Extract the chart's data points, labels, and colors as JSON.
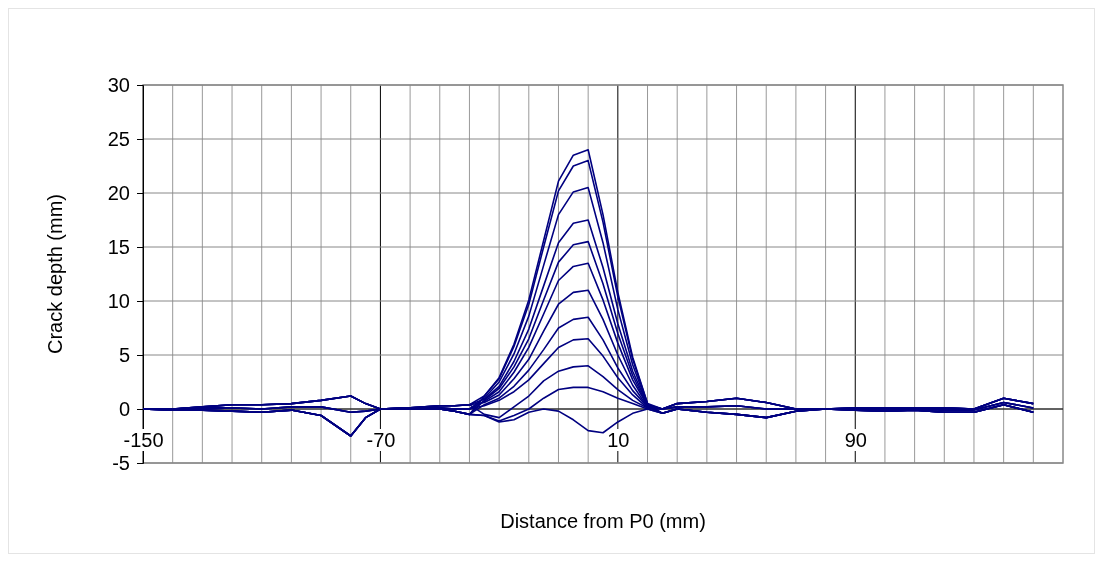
{
  "chart_data": {
    "type": "line",
    "xlabel": "Distance from P0 (mm)",
    "ylabel": "Crack depth (mm)",
    "xlim": [
      -150,
      160
    ],
    "ylim": [
      -5,
      30
    ],
    "xticks": [
      {
        "value": -150,
        "label": "-150"
      },
      {
        "value": -140,
        "label": null
      },
      {
        "value": -130,
        "label": null
      },
      {
        "value": -120,
        "label": null
      },
      {
        "value": -110,
        "label": null
      },
      {
        "value": -100,
        "label": null
      },
      {
        "value": -90,
        "label": null
      },
      {
        "value": -80,
        "label": null
      },
      {
        "value": -70,
        "label": "-70"
      },
      {
        "value": -60,
        "label": null
      },
      {
        "value": -50,
        "label": null
      },
      {
        "value": -40,
        "label": null
      },
      {
        "value": -30,
        "label": null
      },
      {
        "value": -20,
        "label": null
      },
      {
        "value": -10,
        "label": null
      },
      {
        "value": 0,
        "label": null
      },
      {
        "value": 10,
        "label": "10"
      },
      {
        "value": 20,
        "label": null
      },
      {
        "value": 30,
        "label": null
      },
      {
        "value": 40,
        "label": null
      },
      {
        "value": 50,
        "label": null
      },
      {
        "value": 60,
        "label": null
      },
      {
        "value": 70,
        "label": null
      },
      {
        "value": 80,
        "label": null
      },
      {
        "value": 90,
        "label": "90"
      },
      {
        "value": 100,
        "label": null
      },
      {
        "value": 110,
        "label": null
      },
      {
        "value": 120,
        "label": null
      },
      {
        "value": 130,
        "label": null
      },
      {
        "value": 140,
        "label": null
      },
      {
        "value": 150,
        "label": null
      }
    ],
    "yticks": [
      -5,
      0,
      5,
      10,
      15,
      20,
      25,
      30
    ],
    "grid": true,
    "marker": "none",
    "line_style": "solid",
    "x": [
      -150,
      -140,
      -130,
      -120,
      -110,
      -100,
      -90,
      -80,
      -75,
      -70,
      -60,
      -50,
      -45,
      -40,
      -35,
      -30,
      -25,
      -20,
      -15,
      -10,
      -5,
      0,
      5,
      10,
      15,
      20,
      25,
      30,
      40,
      50,
      60,
      70,
      80,
      90,
      100,
      110,
      120,
      130,
      140,
      150
    ],
    "series": [
      {
        "color": "#000080",
        "values": [
          0,
          0,
          0.2,
          0.4,
          0.4,
          0.5,
          0.8,
          1.2,
          0.5,
          0,
          0.1,
          0.3,
          0.3,
          0.4,
          1.2,
          2.9,
          6,
          10.1,
          15.6,
          21.1,
          23.5,
          24,
          18,
          10.8,
          4.8,
          0.5,
          0,
          0.5,
          0.7,
          1.0,
          0.6,
          0,
          0,
          0.1,
          0.1,
          0.1,
          0.1,
          0,
          1.0,
          0.5
        ]
      },
      {
        "color": "#000080",
        "values": [
          0,
          -0.1,
          -0.1,
          -0.2,
          -0.3,
          -0.1,
          -0.6,
          -2.5,
          -0.8,
          0,
          0,
          0,
          -0.2,
          -0.5,
          1.2,
          2.8,
          5.8,
          9.7,
          15,
          20.2,
          22.5,
          23,
          17.3,
          10.4,
          4.6,
          0.5,
          -0.4,
          0,
          -0.3,
          -0.5,
          -0.8,
          -0.2,
          0,
          -0.1,
          -0.2,
          -0.1,
          -0.3,
          -0.3,
          0.4,
          -0.3
        ]
      },
      {
        "color": "#000080",
        "values": [
          0,
          0,
          0.1,
          0.1,
          0,
          0.2,
          0.2,
          -0.3,
          -0.2,
          0,
          0.1,
          0.1,
          0,
          0,
          1,
          2.5,
          5.1,
          8.6,
          13.3,
          18,
          20.1,
          20.5,
          15.4,
          9.2,
          4.1,
          0.4,
          0,
          0.2,
          0.2,
          0.3,
          0,
          0,
          0,
          0,
          0,
          0,
          -0.1,
          -0.1,
          0.6,
          0.1
        ]
      },
      {
        "color": "#000080",
        "values": [
          0,
          0,
          0.2,
          0.4,
          0.4,
          0.5,
          0.8,
          1.2,
          0.5,
          0,
          0.1,
          0.3,
          0.3,
          0.4,
          0.9,
          2.1,
          4.4,
          7.4,
          11.4,
          15.4,
          17.2,
          17.5,
          13.1,
          7.9,
          3.5,
          0.4,
          0,
          0.5,
          0.7,
          1.0,
          0.6,
          0,
          0,
          0.1,
          0.1,
          0.1,
          0.1,
          0,
          1.0,
          0.5
        ]
      },
      {
        "color": "#000080",
        "values": [
          0,
          -0.1,
          -0.1,
          -0.2,
          -0.3,
          -0.1,
          -0.6,
          -2.5,
          -0.8,
          0,
          0,
          0,
          -0.2,
          -0.5,
          0.8,
          1.9,
          3.9,
          6.5,
          10.1,
          13.6,
          15.2,
          15.5,
          11.6,
          7,
          3.1,
          0.3,
          -0.4,
          0,
          -0.3,
          -0.5,
          -0.8,
          -0.2,
          0,
          -0.1,
          -0.2,
          -0.1,
          -0.3,
          -0.3,
          0.4,
          -0.3
        ]
      },
      {
        "color": "#000080",
        "values": [
          0,
          0,
          0.1,
          0.1,
          0,
          0.2,
          0.2,
          -0.3,
          -0.2,
          0,
          0.1,
          0.1,
          0,
          0,
          0.7,
          1.6,
          3.4,
          5.7,
          8.8,
          11.9,
          13.2,
          13.5,
          10.1,
          6.1,
          2.7,
          0.3,
          0,
          0.2,
          0.2,
          0.3,
          0,
          0,
          0,
          0,
          0,
          0,
          -0.1,
          -0.1,
          0.6,
          0.1
        ]
      },
      {
        "color": "#000080",
        "values": [
          0,
          0,
          0.2,
          0.4,
          0.4,
          0.5,
          0.8,
          1.2,
          0.5,
          0,
          0.1,
          0.3,
          0.3,
          0.4,
          0.6,
          1.3,
          2.8,
          4.6,
          7.2,
          9.7,
          10.8,
          11,
          8.3,
          5,
          2.2,
          0.2,
          0,
          0.5,
          0.7,
          1.0,
          0.6,
          0,
          0,
          0.1,
          0.1,
          0.1,
          0.1,
          0,
          1.0,
          0.5
        ]
      },
      {
        "color": "#000080",
        "values": [
          0,
          -0.1,
          -0.1,
          -0.2,
          -0.3,
          -0.1,
          -0.6,
          -2.5,
          -0.8,
          0,
          0,
          0,
          -0.2,
          -0.5,
          0.4,
          1,
          2.1,
          3.6,
          5.5,
          7.5,
          8.3,
          8.5,
          6.4,
          3.8,
          1.7,
          0.2,
          -0.4,
          0,
          -0.3,
          -0.5,
          -0.8,
          -0.2,
          0,
          -0.1,
          -0.2,
          -0.1,
          -0.3,
          -0.3,
          0.4,
          -0.3
        ]
      },
      {
        "color": "#000080",
        "values": [
          0,
          0,
          0.1,
          0.1,
          0,
          0.2,
          0.2,
          -0.3,
          -0.2,
          0,
          0.1,
          0.1,
          0,
          0,
          0.3,
          0.8,
          1.6,
          2.7,
          4.2,
          5.7,
          6.4,
          6.5,
          4.9,
          2.9,
          1.3,
          0.1,
          0,
          0.2,
          0.2,
          0.3,
          0,
          0,
          0,
          0,
          0,
          0,
          -0.1,
          -0.1,
          0.6,
          0.1
        ]
      },
      {
        "color": "#000080",
        "values": [
          0,
          0,
          0.2,
          0.4,
          0.4,
          0.5,
          0.8,
          1.2,
          0.5,
          0,
          0.1,
          0.3,
          0.3,
          0.4,
          -0.5,
          -0.8,
          0.2,
          1.2,
          2.6,
          3.5,
          3.9,
          4,
          3,
          1.8,
          0.8,
          0.1,
          0,
          0.5,
          0.7,
          1.0,
          0.6,
          0,
          0,
          0.1,
          0.1,
          0.1,
          0.1,
          0,
          1.0,
          0.5
        ]
      },
      {
        "color": "#000080",
        "values": [
          0,
          -0.1,
          -0.1,
          -0.2,
          -0.3,
          -0.1,
          -0.6,
          -2.5,
          -0.8,
          0,
          0,
          0,
          -0.2,
          -0.5,
          -0.6,
          -1.1,
          -0.6,
          0,
          1,
          1.8,
          2,
          2,
          1.6,
          1,
          0.5,
          0,
          -0.4,
          0,
          -0.3,
          -0.5,
          -0.8,
          -0.2,
          0,
          -0.1,
          -0.2,
          -0.1,
          -0.3,
          -0.3,
          0.4,
          -0.3
        ]
      },
      {
        "color": "#000080",
        "values": [
          0,
          -0.1,
          -0.1,
          -0.2,
          -0.3,
          -0.1,
          -0.6,
          -2.5,
          -0.8,
          0,
          0,
          0,
          -0.2,
          -0.5,
          -0.6,
          -1.2,
          -1,
          -0.3,
          0,
          -0.2,
          -1,
          -2,
          -2.2,
          -1.2,
          -0.4,
          0,
          -0.4,
          0,
          -0.3,
          -0.5,
          -0.8,
          -0.2,
          0,
          -0.1,
          -0.2,
          -0.1,
          -0.3,
          -0.3,
          0.4,
          -0.3
        ]
      }
    ]
  }
}
